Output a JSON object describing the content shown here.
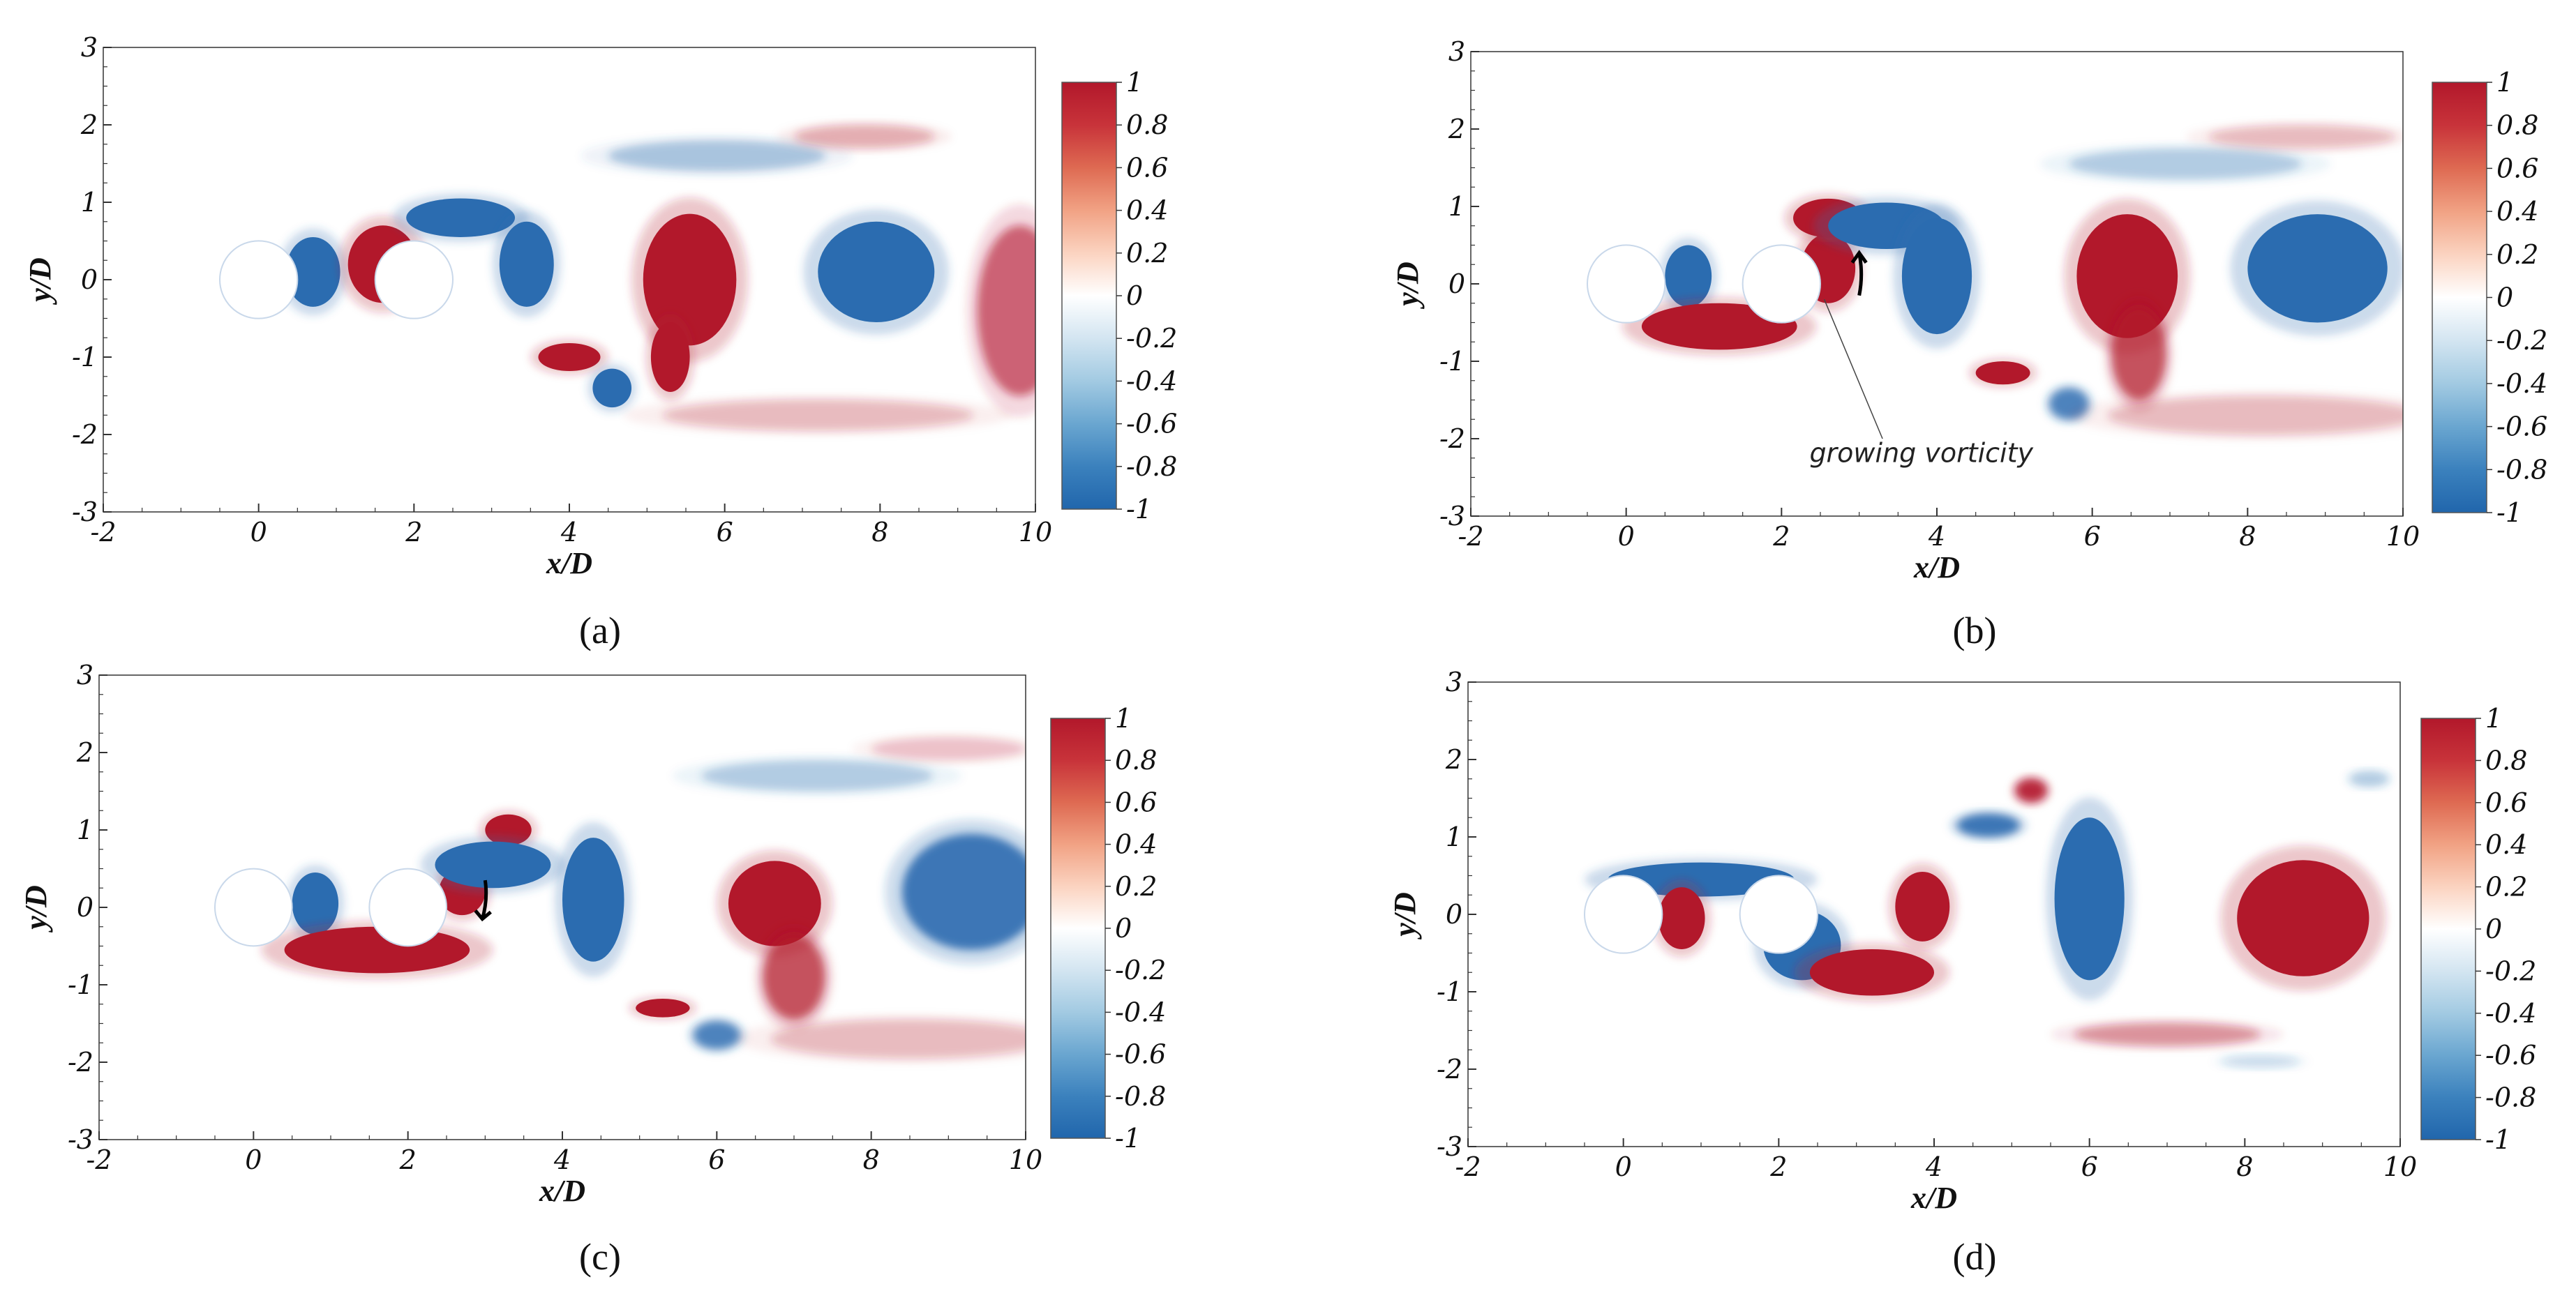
{
  "chart_data": [
    {
      "type": "heatmap",
      "panel_label": "(a)",
      "panel_letter": "a",
      "xlabel": "x/D",
      "ylabel": "y/D",
      "xlim": [
        -2,
        10
      ],
      "ylim": [
        -3,
        3
      ],
      "x_ticks": [
        "-2",
        "0",
        "2",
        "4",
        "6",
        "8",
        "10"
      ],
      "y_ticks": [
        "3",
        "2",
        "1",
        "0",
        "-1",
        "-2",
        "-3"
      ],
      "colorbar": {
        "range": [
          -1,
          1
        ],
        "ticks": [
          "1",
          "0.8",
          "0.6",
          "0.4",
          "0.2",
          "0",
          "-0.2",
          "-0.4",
          "-0.6",
          "-0.8",
          "-1"
        ]
      },
      "cylinders": [
        {
          "x": 0,
          "y": 0,
          "d": 1
        },
        {
          "x": 2,
          "y": 0,
          "d": 1
        }
      ],
      "vortices": [
        {
          "x": 0.7,
          "y": 0.1,
          "rx": 0.35,
          "ry": 0.45,
          "sign": -1,
          "strength": 1
        },
        {
          "x": 1.6,
          "y": 0.2,
          "rx": 0.45,
          "ry": 0.5,
          "sign": 1,
          "strength": 1
        },
        {
          "x": 2.6,
          "y": 0.8,
          "rx": 0.7,
          "ry": 0.25,
          "sign": -1,
          "strength": 1
        },
        {
          "x": 3.45,
          "y": 0.2,
          "rx": 0.35,
          "ry": 0.55,
          "sign": -1,
          "strength": 1
        },
        {
          "x": 5.55,
          "y": 0.0,
          "rx": 0.6,
          "ry": 0.85,
          "sign": 1,
          "strength": 1
        },
        {
          "x": 5.3,
          "y": -1.0,
          "rx": 0.25,
          "ry": 0.45,
          "sign": 1,
          "strength": 1
        },
        {
          "x": 4.0,
          "y": -1.0,
          "rx": 0.4,
          "ry": 0.18,
          "sign": 1,
          "strength": 1
        },
        {
          "x": 4.55,
          "y": -1.4,
          "rx": 0.25,
          "ry": 0.25,
          "sign": -1,
          "strength": 1
        },
        {
          "x": 7.95,
          "y": 0.1,
          "rx": 0.75,
          "ry": 0.65,
          "sign": -1,
          "strength": 1
        },
        {
          "x": 9.8,
          "y": -0.4,
          "rx": 0.55,
          "ry": 1.1,
          "sign": 1,
          "strength": 0.6
        },
        {
          "x": 5.9,
          "y": 1.6,
          "rx": 1.4,
          "ry": 0.2,
          "sign": -1,
          "strength": 0.35
        },
        {
          "x": 7.8,
          "y": 1.85,
          "rx": 0.9,
          "ry": 0.15,
          "sign": 1,
          "strength": 0.3
        },
        {
          "x": 7.2,
          "y": -1.75,
          "rx": 2.0,
          "ry": 0.2,
          "sign": 1,
          "strength": 0.25
        }
      ]
    },
    {
      "type": "heatmap",
      "panel_label": "(b)",
      "panel_letter": "b",
      "xlabel": "x/D",
      "ylabel": "y/D",
      "xlim": [
        -2,
        10
      ],
      "ylim": [
        -3,
        3
      ],
      "x_ticks": [
        "-2",
        "0",
        "2",
        "4",
        "6",
        "8",
        "10"
      ],
      "y_ticks": [
        "3",
        "2",
        "1",
        "0",
        "-1",
        "-2",
        "-3"
      ],
      "colorbar": {
        "range": [
          -1,
          1
        ],
        "ticks": [
          "1",
          "0.8",
          "0.6",
          "0.4",
          "0.2",
          "0",
          "-0.2",
          "-0.4",
          "-0.6",
          "-0.8",
          "-1"
        ]
      },
      "annotation": {
        "text": "growing vorticity",
        "arrow_direction": "up"
      },
      "cylinders": [
        {
          "x": 0,
          "y": 0,
          "d": 1
        },
        {
          "x": 2,
          "y": 0,
          "d": 1
        }
      ],
      "vortices": [
        {
          "x": 0.8,
          "y": 0.1,
          "rx": 0.3,
          "ry": 0.4,
          "sign": -1,
          "strength": 1
        },
        {
          "x": 1.2,
          "y": -0.55,
          "rx": 1.0,
          "ry": 0.3,
          "sign": 1,
          "strength": 1
        },
        {
          "x": 2.6,
          "y": 0.2,
          "rx": 0.35,
          "ry": 0.45,
          "sign": 1,
          "strength": 1
        },
        {
          "x": 2.6,
          "y": 0.85,
          "rx": 0.45,
          "ry": 0.25,
          "sign": 1,
          "strength": 1
        },
        {
          "x": 3.35,
          "y": 0.75,
          "rx": 0.75,
          "ry": 0.3,
          "sign": -1,
          "strength": 1
        },
        {
          "x": 4.0,
          "y": 0.1,
          "rx": 0.45,
          "ry": 0.75,
          "sign": -1,
          "strength": 1
        },
        {
          "x": 6.45,
          "y": 0.1,
          "rx": 0.65,
          "ry": 0.8,
          "sign": 1,
          "strength": 1
        },
        {
          "x": 6.6,
          "y": -0.9,
          "rx": 0.35,
          "ry": 0.6,
          "sign": 1,
          "strength": 0.7
        },
        {
          "x": 4.85,
          "y": -1.15,
          "rx": 0.35,
          "ry": 0.15,
          "sign": 1,
          "strength": 1
        },
        {
          "x": 5.7,
          "y": -1.55,
          "rx": 0.25,
          "ry": 0.2,
          "sign": -1,
          "strength": 0.8
        },
        {
          "x": 8.9,
          "y": 0.2,
          "rx": 0.9,
          "ry": 0.7,
          "sign": -1,
          "strength": 1
        },
        {
          "x": 7.2,
          "y": 1.55,
          "rx": 1.5,
          "ry": 0.2,
          "sign": -1,
          "strength": 0.3
        },
        {
          "x": 8.7,
          "y": 1.9,
          "rx": 1.2,
          "ry": 0.15,
          "sign": 1,
          "strength": 0.25
        },
        {
          "x": 8.2,
          "y": -1.7,
          "rx": 2.0,
          "ry": 0.25,
          "sign": 1,
          "strength": 0.25
        }
      ]
    },
    {
      "type": "heatmap",
      "panel_label": "(c)",
      "panel_letter": "c",
      "xlabel": "x/D",
      "ylabel": "y/D",
      "xlim": [
        -2,
        10
      ],
      "ylim": [
        -3,
        3
      ],
      "x_ticks": [
        "-2",
        "0",
        "2",
        "4",
        "6",
        "8",
        "10"
      ],
      "y_ticks": [
        "3",
        "2",
        "1",
        "0",
        "-1",
        "-2",
        "-3"
      ],
      "colorbar": {
        "range": [
          -1,
          1
        ],
        "ticks": [
          "1",
          "0.8",
          "0.6",
          "0.4",
          "0.2",
          "0",
          "-0.2",
          "-0.4",
          "-0.6",
          "-0.8",
          "-1"
        ]
      },
      "annotation": {
        "text": "",
        "arrow_direction": "down"
      },
      "cylinders": [
        {
          "x": 0,
          "y": 0,
          "d": 1
        },
        {
          "x": 2,
          "y": 0,
          "d": 1
        }
      ],
      "vortices": [
        {
          "x": 0.8,
          "y": 0.05,
          "rx": 0.3,
          "ry": 0.4,
          "sign": -1,
          "strength": 1
        },
        {
          "x": 1.6,
          "y": -0.55,
          "rx": 1.2,
          "ry": 0.3,
          "sign": 1,
          "strength": 1
        },
        {
          "x": 2.7,
          "y": 0.2,
          "rx": 0.3,
          "ry": 0.3,
          "sign": 1,
          "strength": 1
        },
        {
          "x": 3.3,
          "y": 1.0,
          "rx": 0.3,
          "ry": 0.2,
          "sign": 1,
          "strength": 1
        },
        {
          "x": 3.1,
          "y": 0.55,
          "rx": 0.75,
          "ry": 0.3,
          "sign": -1,
          "strength": 1
        },
        {
          "x": 4.4,
          "y": 0.1,
          "rx": 0.4,
          "ry": 0.8,
          "sign": -1,
          "strength": 1
        },
        {
          "x": 6.75,
          "y": 0.05,
          "rx": 0.6,
          "ry": 0.55,
          "sign": 1,
          "strength": 1
        },
        {
          "x": 7.0,
          "y": -0.9,
          "rx": 0.4,
          "ry": 0.55,
          "sign": 1,
          "strength": 0.7
        },
        {
          "x": 5.3,
          "y": -1.3,
          "rx": 0.35,
          "ry": 0.12,
          "sign": 1,
          "strength": 1
        },
        {
          "x": 6.0,
          "y": -1.65,
          "rx": 0.3,
          "ry": 0.18,
          "sign": -1,
          "strength": 0.8
        },
        {
          "x": 9.3,
          "y": 0.2,
          "rx": 0.9,
          "ry": 0.75,
          "sign": -1,
          "strength": 0.9
        },
        {
          "x": 7.3,
          "y": 1.7,
          "rx": 1.5,
          "ry": 0.2,
          "sign": -1,
          "strength": 0.3
        },
        {
          "x": 9.0,
          "y": 2.05,
          "rx": 1.0,
          "ry": 0.15,
          "sign": 1,
          "strength": 0.2
        },
        {
          "x": 8.5,
          "y": -1.7,
          "rx": 1.8,
          "ry": 0.25,
          "sign": 1,
          "strength": 0.25
        }
      ]
    },
    {
      "type": "heatmap",
      "panel_label": "(d)",
      "panel_letter": "d",
      "xlabel": "x/D",
      "ylabel": "y/D",
      "xlim": [
        -2,
        10
      ],
      "ylim": [
        -3,
        3
      ],
      "x_ticks": [
        "-2",
        "0",
        "2",
        "4",
        "6",
        "8",
        "10"
      ],
      "y_ticks": [
        "3",
        "2",
        "1",
        "0",
        "-1",
        "-2",
        "-3"
      ],
      "colorbar": {
        "range": [
          -1,
          1
        ],
        "ticks": [
          "1",
          "0.8",
          "0.6",
          "0.4",
          "0.2",
          "0",
          "-0.2",
          "-0.4",
          "-0.6",
          "-0.8",
          "-1"
        ]
      },
      "cylinders": [
        {
          "x": 0,
          "y": 0,
          "d": 1
        },
        {
          "x": 2,
          "y": 0,
          "d": 1
        }
      ],
      "vortices": [
        {
          "x": 1.0,
          "y": 0.45,
          "rx": 1.2,
          "ry": 0.22,
          "sign": -1,
          "strength": 1
        },
        {
          "x": 0.75,
          "y": -0.05,
          "rx": 0.3,
          "ry": 0.4,
          "sign": 1,
          "strength": 1
        },
        {
          "x": 2.3,
          "y": -0.4,
          "rx": 0.5,
          "ry": 0.45,
          "sign": -1,
          "strength": 1
        },
        {
          "x": 3.2,
          "y": -0.75,
          "rx": 0.8,
          "ry": 0.3,
          "sign": 1,
          "strength": 1
        },
        {
          "x": 3.85,
          "y": 0.1,
          "rx": 0.35,
          "ry": 0.45,
          "sign": 1,
          "strength": 1
        },
        {
          "x": 4.7,
          "y": 1.15,
          "rx": 0.4,
          "ry": 0.15,
          "sign": -1,
          "strength": 0.9
        },
        {
          "x": 5.25,
          "y": 1.6,
          "rx": 0.2,
          "ry": 0.15,
          "sign": 1,
          "strength": 0.9
        },
        {
          "x": 6.0,
          "y": 0.2,
          "rx": 0.45,
          "ry": 1.05,
          "sign": -1,
          "strength": 1
        },
        {
          "x": 8.75,
          "y": -0.05,
          "rx": 0.85,
          "ry": 0.75,
          "sign": 1,
          "strength": 1
        },
        {
          "x": 7.0,
          "y": -1.55,
          "rx": 1.2,
          "ry": 0.15,
          "sign": 1,
          "strength": 0.4
        },
        {
          "x": 9.6,
          "y": 1.75,
          "rx": 0.25,
          "ry": 0.1,
          "sign": -1,
          "strength": 0.3
        },
        {
          "x": 8.2,
          "y": -1.9,
          "rx": 0.5,
          "ry": 0.08,
          "sign": -1,
          "strength": 0.2
        }
      ]
    }
  ]
}
